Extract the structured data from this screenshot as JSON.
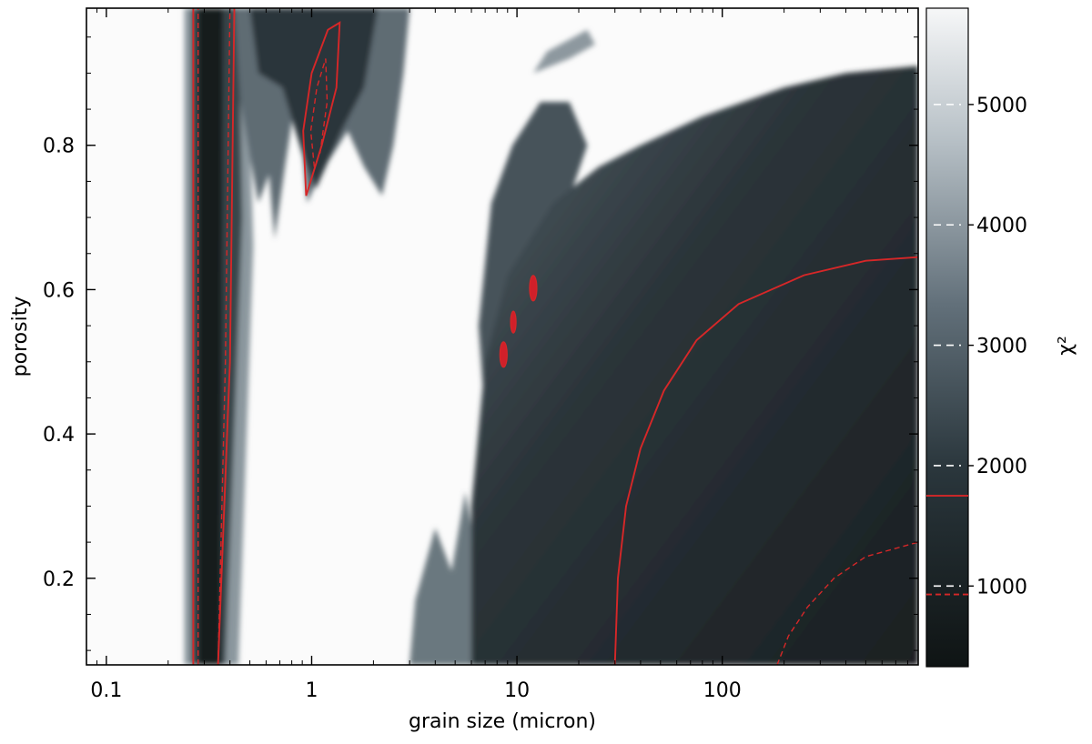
{
  "chart_data": [
    {
      "type": "heatmap",
      "title": "",
      "xlabel": "grain size (micron)",
      "ylabel": "porosity",
      "x_scale": "log",
      "xlim": [
        0.08,
        900
      ],
      "ylim": [
        0.08,
        0.99
      ],
      "x_ticks": [
        {
          "value": 0.1,
          "label": "0.1"
        },
        {
          "value": 1,
          "label": "1"
        },
        {
          "value": 10,
          "label": "10"
        },
        {
          "value": 100,
          "label": "100"
        }
      ],
      "y_ticks": [
        {
          "value": 0.2,
          "label": "0.2"
        },
        {
          "value": 0.4,
          "label": "0.4"
        },
        {
          "value": 0.6,
          "label": "0.6"
        },
        {
          "value": 0.8,
          "label": "0.8"
        }
      ],
      "grid": false,
      "value_label": "χ²",
      "color_range": [
        330,
        5800
      ],
      "contour_levels": [
        {
          "value": 1750,
          "style": "solid",
          "color": "#d62728"
        },
        {
          "value": 930,
          "style": "dashed",
          "color": "#d62728"
        }
      ],
      "features": [
        {
          "region": "vertical minimum band",
          "grain_size": [
            0.27,
            0.42
          ],
          "porosity": [
            0.08,
            0.99
          ],
          "chi2": "below 930"
        },
        {
          "region": "isolated minimum",
          "grain_size": [
            0.93,
            1.38
          ],
          "porosity": [
            0.73,
            0.97
          ],
          "chi2": "below 930"
        },
        {
          "region": "small islands",
          "grain_size": [
            8.5,
            12
          ],
          "porosity": [
            0.5,
            0.6
          ],
          "chi2": "below 1750"
        },
        {
          "region": "large-grain basin",
          "grain_size": [
            30,
            900
          ],
          "porosity": [
            0.08,
            0.64
          ],
          "chi2": "below 1750"
        }
      ]
    },
    {
      "type": "colorbar",
      "label": "χ²",
      "range": [
        330,
        5800
      ],
      "ticks": [
        {
          "value": 1000,
          "label": "1000"
        },
        {
          "value": 2000,
          "label": "2000"
        },
        {
          "value": 3000,
          "label": "3000"
        },
        {
          "value": 4000,
          "label": "4000"
        },
        {
          "value": 5000,
          "label": "5000"
        }
      ],
      "contour_marks": [
        {
          "value": 1750,
          "style": "solid",
          "color": "#d62728"
        },
        {
          "value": 930,
          "style": "dashed",
          "color": "#d62728"
        }
      ]
    }
  ]
}
